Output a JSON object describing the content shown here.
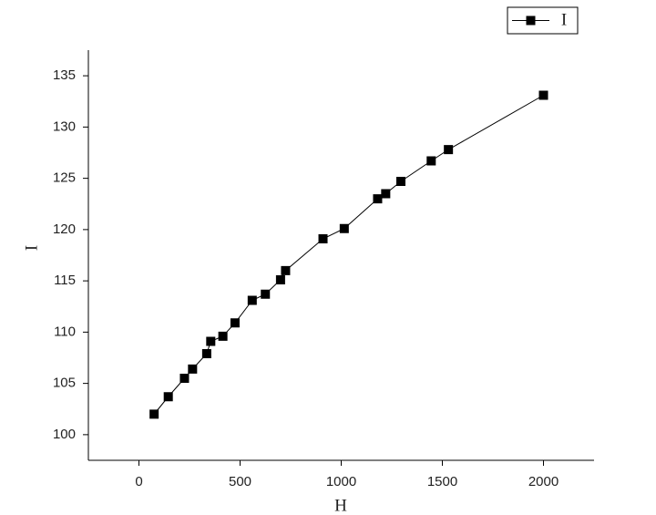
{
  "chart_data": {
    "type": "line",
    "x_label": "H",
    "y_label": "I",
    "x": [
      75,
      145,
      225,
      265,
      335,
      355,
      415,
      475,
      560,
      625,
      700,
      725,
      910,
      1015,
      1180,
      1220,
      1295,
      1445,
      1530,
      2000
    ],
    "series": [
      {
        "name": "I",
        "color": "#000000",
        "values": [
          102,
          103.7,
          105.5,
          106.4,
          107.9,
          109.1,
          109.6,
          110.9,
          113.1,
          113.7,
          115.1,
          116,
          119.1,
          120.1,
          123,
          123.5,
          124.7,
          126.7,
          127.8,
          133.1
        ]
      }
    ],
    "xlim": [
      -250,
      2250
    ],
    "xticks": [
      0,
      500,
      1000,
      1500,
      2000
    ],
    "ylim": [
      97.5,
      137.5
    ],
    "yticks": [
      100,
      105,
      110,
      115,
      120,
      125,
      130,
      135
    ],
    "legend": "top-right",
    "markers": true
  }
}
